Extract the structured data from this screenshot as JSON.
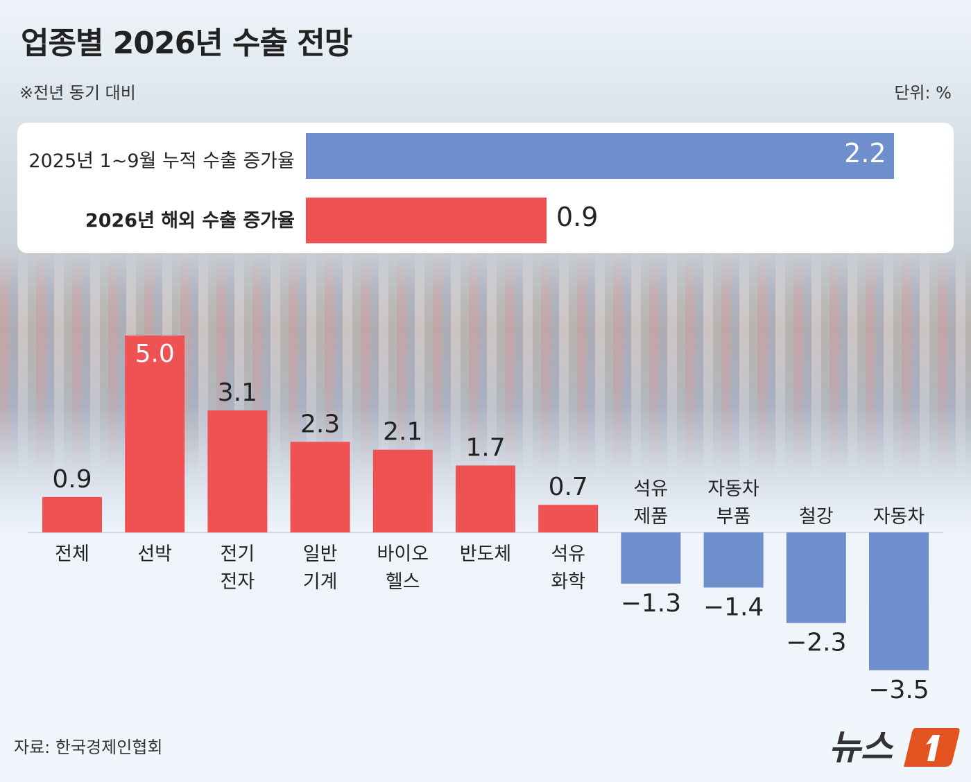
{
  "title": "업종별 2026년 수출 전망",
  "subtitle": "※전년 동기 대비",
  "unit": "단위: %",
  "source": "자료: 한국경제인협회",
  "logo": "뉴스1",
  "colors": {
    "positive": "#ee5253",
    "negative": "#6f8fcc"
  },
  "chart_data": [
    {
      "type": "bar",
      "orientation": "horizontal",
      "categories": [
        "2025년 1~9월 누적 수출 증가율",
        "2026년 해외 수출 증가율"
      ],
      "values": [
        2.2,
        0.9
      ],
      "colors": [
        "#6f8fcc",
        "#ee5253"
      ]
    },
    {
      "type": "bar",
      "categories": [
        "전체",
        "선박",
        "전기\n전자",
        "일반\n기계",
        "바이오\n헬스",
        "반도체",
        "석유\n화학",
        "석유\n제품",
        "자동차\n부품",
        "철강",
        "자동차"
      ],
      "values": [
        0.9,
        5.0,
        3.1,
        2.3,
        2.1,
        1.7,
        0.7,
        -1.3,
        -1.4,
        -2.3,
        -3.5
      ],
      "value_labels": [
        "0.9",
        "5.0",
        "3.1",
        "2.3",
        "2.1",
        "1.7",
        "0.7",
        "−1.3",
        "−1.4",
        "−2.3",
        "−3.5"
      ]
    }
  ]
}
